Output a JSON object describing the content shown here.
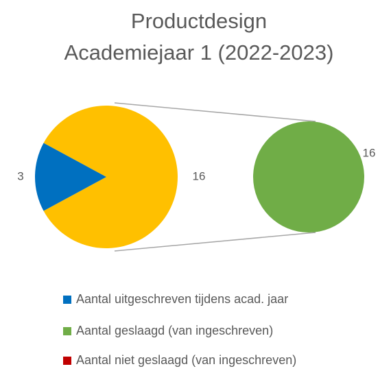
{
  "chart_data": {
    "type": "pie",
    "title": "Productdesign",
    "subtitle": "Academiejaar 1 (2022-2023)",
    "series": [
      {
        "name": "Aantal uitgeschreven tijdens acad. jaar",
        "color": "#0070c0",
        "value": 3
      },
      {
        "name": "Aantal geslaagd (van ingeschreven)",
        "color": "#70ad47",
        "value": 16
      },
      {
        "name": "Aantal niet geslaagd (van ingeschreven)",
        "color": "#c00000",
        "value": 0
      }
    ],
    "other": {
      "color": "#ffc000",
      "value": 16
    },
    "legend": "bottom"
  }
}
